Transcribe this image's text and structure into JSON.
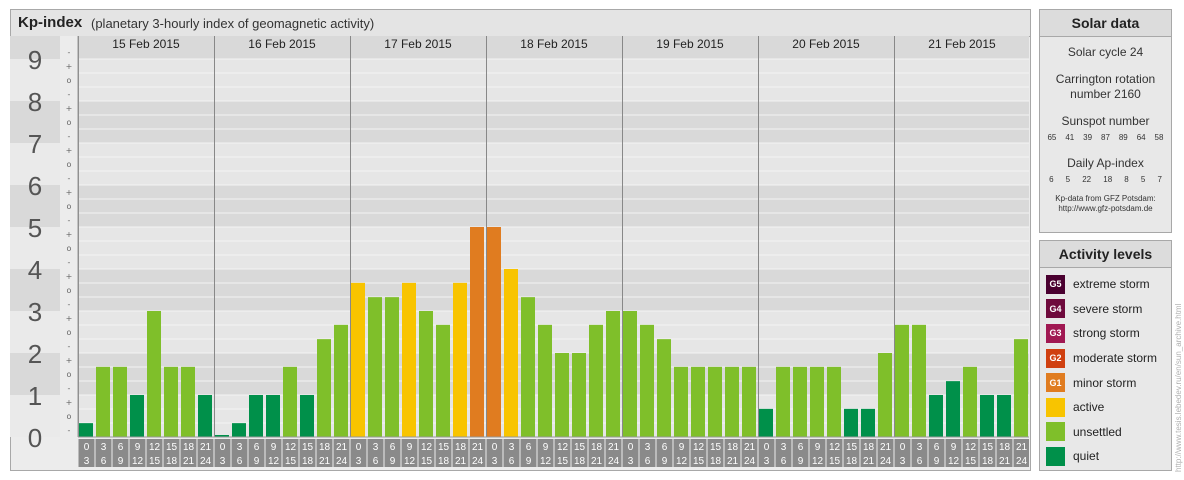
{
  "header": {
    "title": "Kp-index",
    "subtitle": "(planetary 3-hourly index of geomagnetic activity)"
  },
  "solar": {
    "title": "Solar data",
    "cycle": "Solar cycle 24",
    "carrington": "Carrington rotation number 2160",
    "sunspot_title": "Sunspot number",
    "sunspot_values": [
      "65",
      "41",
      "39",
      "87",
      "89",
      "64",
      "58"
    ],
    "ap_title": "Daily Ap-index",
    "ap_values": [
      "6",
      "5",
      "22",
      "18",
      "8",
      "5",
      "7"
    ],
    "credit_line1": "Kp-data from GFZ Potsdam:",
    "credit_line2": "http://www.gfz-potsdam.de"
  },
  "activity": {
    "title": "Activity levels",
    "levels": [
      {
        "code": "G5",
        "label": "extreme storm",
        "color": "#4a0030"
      },
      {
        "code": "G4",
        "label": "severe storm",
        "color": "#6e0a3c"
      },
      {
        "code": "G3",
        "label": "strong storm",
        "color": "#a01852"
      },
      {
        "code": "G2",
        "label": "moderate storm",
        "color": "#d04010"
      },
      {
        "code": "G1",
        "label": "minor storm",
        "color": "#e07c20"
      },
      {
        "code": "",
        "label": "active",
        "color": "#f8c400"
      },
      {
        "code": "",
        "label": "unsettled",
        "color": "#7fbf2a"
      },
      {
        "code": "",
        "label": "quiet",
        "color": "#00904a"
      }
    ]
  },
  "watermark": "http://www.tesis.lebedev.ru/en/sun_archive.html",
  "chart_data": {
    "type": "bar",
    "title": "Kp-index",
    "subtitle": "(planetary 3-hourly index of geomagnetic activity)",
    "ylim": [
      0,
      9.33
    ],
    "y_ticks": [
      "0",
      "1",
      "2",
      "3",
      "4",
      "5",
      "6",
      "7",
      "8",
      "9"
    ],
    "sub_ticks": [
      "+",
      "o",
      "-"
    ],
    "days": [
      "15 Feb 2015",
      "16 Feb 2015",
      "17 Feb 2015",
      "18 Feb 2015",
      "19 Feb 2015",
      "20 Feb 2015",
      "21 Feb 2015"
    ],
    "interval_top": [
      "0",
      "3",
      "6",
      "9",
      "12",
      "15",
      "18",
      "21"
    ],
    "interval_bottom": [
      "3",
      "6",
      "9",
      "12",
      "15",
      "18",
      "21",
      "24"
    ],
    "values": [
      [
        0.33,
        1.67,
        1.67,
        1.0,
        3.0,
        1.67,
        1.67,
        1.0
      ],
      [
        0.0,
        0.33,
        1.0,
        1.0,
        1.67,
        1.0,
        2.33,
        2.67
      ],
      [
        3.67,
        3.33,
        3.33,
        3.67,
        3.0,
        2.67,
        3.67,
        5.0
      ],
      [
        5.0,
        4.0,
        3.33,
        2.67,
        2.0,
        2.0,
        2.67,
        3.0
      ],
      [
        3.0,
        2.67,
        2.33,
        1.67,
        1.67,
        1.67,
        1.67,
        1.67
      ],
      [
        0.67,
        1.67,
        1.67,
        1.67,
        1.67,
        0.67,
        0.67,
        2.0
      ],
      [
        2.67,
        2.67,
        1.0,
        1.33,
        1.67,
        1.0,
        1.0,
        2.33
      ]
    ],
    "level_colors": {
      "quiet": "#00904a",
      "unsettled": "#7fbf2a",
      "active": "#f8c400",
      "minor": "#e07c20"
    }
  }
}
